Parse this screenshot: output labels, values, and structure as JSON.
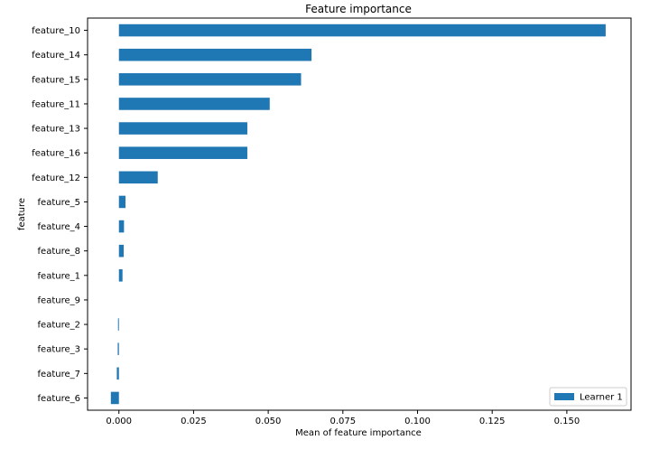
{
  "chart_data": {
    "type": "bar",
    "orientation": "horizontal",
    "title": "Feature importance",
    "xlabel": "Mean of feature importance",
    "ylabel": "feature",
    "categories": [
      "feature_10",
      "feature_14",
      "feature_15",
      "feature_11",
      "feature_13",
      "feature_16",
      "feature_12",
      "feature_5",
      "feature_4",
      "feature_8",
      "feature_1",
      "feature_9",
      "feature_2",
      "feature_3",
      "feature_7",
      "feature_6"
    ],
    "series": [
      {
        "name": "Learner 1",
        "color": "#1f77b4",
        "values": [
          0.163,
          0.0645,
          0.061,
          0.0505,
          0.043,
          0.043,
          0.013,
          0.0022,
          0.0017,
          0.0016,
          0.0012,
          0.0,
          -0.0003,
          -0.0004,
          -0.0007,
          -0.0027
        ]
      }
    ],
    "xlim": [
      -0.0105,
      0.1715
    ],
    "xticks": [
      0.0,
      0.025,
      0.05,
      0.075,
      0.1,
      0.125,
      0.15
    ],
    "xtick_labels": [
      "0.000",
      "0.025",
      "0.050",
      "0.075",
      "0.100",
      "0.125",
      "0.150"
    ],
    "grid": false,
    "legend_position": "lower-right"
  }
}
